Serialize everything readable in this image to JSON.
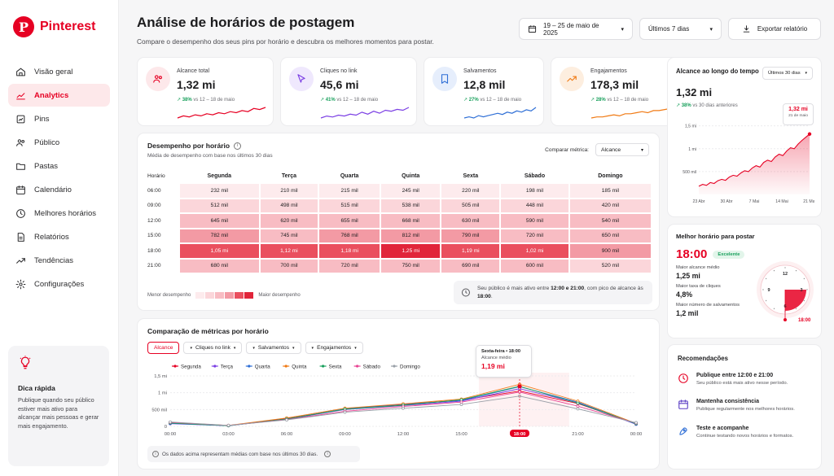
{
  "brand": {
    "name": "Pinterest",
    "logo_letter": "P",
    "accent": "#e60023"
  },
  "nav": [
    {
      "label": "Visão geral",
      "icon": "home-icon"
    },
    {
      "label": "Analytics",
      "icon": "analytics-icon",
      "active": true
    },
    {
      "label": "Pins",
      "icon": "pin-icon"
    },
    {
      "label": "Público",
      "icon": "audience-icon"
    },
    {
      "label": "Pastas",
      "icon": "folder-icon"
    },
    {
      "label": "Calendário",
      "icon": "calendar-icon"
    },
    {
      "label": "Melhores horários",
      "icon": "clock-icon"
    },
    {
      "label": "Relatórios",
      "icon": "report-icon"
    },
    {
      "label": "Tendências",
      "icon": "trend-icon"
    },
    {
      "label": "Configurações",
      "icon": "gear-icon"
    }
  ],
  "tip": {
    "title": "Dica rápida",
    "text": "Publique quando seu público estiver mais ativo para alcançar mais pessoas e gerar mais engajamento."
  },
  "header": {
    "title": "Análise de horários de postagem",
    "subtitle": "Compare o desempenho dos seus pins por horário e descubra os melhores momentos para postar.",
    "date_range": "19 – 25 de maio de 2025",
    "period": "Últimos 7 dias",
    "export_label": "Exportar relatório"
  },
  "kpis": [
    {
      "label": "Alcance total",
      "value": "1,32 mi",
      "change": "38%",
      "compare": "vs 12 – 18 de maio",
      "color": "#e60023",
      "bg": "#fde8ea",
      "icon": "users-icon"
    },
    {
      "label": "Cliques no link",
      "value": "45,6 mi",
      "change": "41%",
      "compare": "vs 12 – 18 de maio",
      "color": "#7b3fe4",
      "bg": "#efe8fd",
      "icon": "cursor-icon"
    },
    {
      "label": "Salvamentos",
      "value": "12,8 mil",
      "change": "27%",
      "compare": "vs 12 – 18 de maio",
      "color": "#2f6fd6",
      "bg": "#e6eefc",
      "icon": "bookmark-icon"
    },
    {
      "label": "Engajamentos",
      "value": "178,3 mil",
      "change": "28%",
      "compare": "vs 12 – 18 de maio",
      "color": "#f07a14",
      "bg": "#fdeedf",
      "icon": "trending-icon"
    }
  ],
  "heatmap": {
    "title": "Desempenho por horário",
    "subtitle": "Média de desempenho com base nos últimos 30 dias",
    "metric_label": "Comparar métrica:",
    "metric_value": "Alcance",
    "corner": "Horário",
    "days": [
      "Segunda",
      "Terça",
      "Quarta",
      "Quinta",
      "Sexta",
      "Sábado",
      "Domingo"
    ],
    "rows": [
      {
        "hour": "06:00",
        "cells": [
          "232 mil",
          "210 mil",
          "215 mil",
          "245 mil",
          "220 mil",
          "198 mil",
          "185 mil"
        ],
        "level": [
          1,
          1,
          1,
          1,
          1,
          1,
          1
        ]
      },
      {
        "hour": "09:00",
        "cells": [
          "512 mil",
          "498 mil",
          "515 mil",
          "538 mil",
          "505 mil",
          "448 mil",
          "420 mil"
        ],
        "level": [
          2,
          2,
          2,
          2,
          2,
          2,
          2
        ]
      },
      {
        "hour": "12:00",
        "cells": [
          "645 mil",
          "620 mil",
          "655 mil",
          "668 mil",
          "630 mil",
          "590 mil",
          "540 mil"
        ],
        "level": [
          3,
          3,
          3,
          3,
          3,
          3,
          3
        ]
      },
      {
        "hour": "15:00",
        "cells": [
          "782 mil",
          "745 mil",
          "768 mil",
          "812 mil",
          "790 mil",
          "720 mil",
          "650 mil"
        ],
        "level": [
          4,
          3,
          4,
          4,
          4,
          3,
          3
        ]
      },
      {
        "hour": "18:00",
        "cells": [
          "1,05 mi",
          "1,12 mi",
          "1,18 mi",
          "1,25 mi",
          "1,19 mi",
          "1,02 mi",
          "900 mil"
        ],
        "level": [
          5,
          5,
          5,
          6,
          5,
          5,
          4
        ]
      },
      {
        "hour": "21:00",
        "cells": [
          "680 mil",
          "700 mil",
          "720 mil",
          "750 mil",
          "690 mil",
          "600 mil",
          "520 mil"
        ],
        "level": [
          3,
          3,
          3,
          3,
          3,
          3,
          2
        ]
      }
    ],
    "legend_low": "Menor desempenho",
    "legend_high": "Maior desempenho",
    "insight_prefix": "Seu público é mais ativo entre ",
    "insight_hours": "12:00 e 21:00",
    "insight_mid": ", com pico de alcance às ",
    "insight_peak": "18:00",
    "insight_end": "."
  },
  "reach_chart": {
    "title": "Alcance ao longo do tempo",
    "period": "Últimos 30 dias",
    "value": "1,32 mi",
    "change": "38%",
    "compare": "vs 30 dias anteriores",
    "callout_value": "1,32 mi",
    "callout_date": "21 de maio"
  },
  "best_time": {
    "title": "Melhor horário para postar",
    "time": "18:00",
    "badge": "Excelente",
    "stats": [
      {
        "label": "Maior alcance médio",
        "value": "1,25 mi"
      },
      {
        "label": "Maior taxa de cliques",
        "value": "4,8%"
      },
      {
        "label": "Maior número de salvamentos",
        "value": "1,2 mil"
      }
    ],
    "clock_numbers": [
      "12",
      "3",
      "6",
      "9"
    ],
    "clock_label": "18:00"
  },
  "recommendations": {
    "title": "Recomendações",
    "items": [
      {
        "title": "Publique entre 12:00 e 21:00",
        "text": "Seu público está mais ativo nesse período.",
        "icon": "clock-icon",
        "color": "#e60023"
      },
      {
        "title": "Mantenha consistência",
        "text": "Publique regularmente nos melhores horários.",
        "icon": "calendar-icon",
        "color": "#5b3fc4"
      },
      {
        "title": "Teste e acompanhe",
        "text": "Continue testando novos horários e formatos.",
        "icon": "rocket-icon",
        "color": "#2f6fd6"
      }
    ]
  },
  "comparison": {
    "title": "Comparação de métricas por horário",
    "tabs": [
      "Alcance",
      "Cliques no link",
      "Salvamentos",
      "Engajamentos"
    ],
    "tooltip_day": "Sexta-feira • 18:00",
    "tooltip_label": "Alcance médio",
    "tooltip_value": "1,19 mi",
    "highlight_x": "18:00",
    "footnote": "Os dados acima representam médias com base nos últimos 30 dias."
  },
  "chart_data": [
    {
      "type": "line",
      "title": "Comparação de métricas por horário",
      "x": [
        "00:00",
        "03:00",
        "06:00",
        "09:00",
        "12:00",
        "15:00",
        "18:00",
        "21:00",
        "00:00"
      ],
      "y_ticks": [
        "0",
        "500 mil",
        "1 mi",
        "1,5 mi"
      ],
      "ylim": [
        0,
        1.5
      ],
      "legend_position": "top",
      "series": [
        {
          "name": "Segunda",
          "color": "#e60023",
          "values": [
            0.1,
            0.02,
            0.23,
            0.51,
            0.65,
            0.78,
            1.05,
            0.68,
            0.08
          ]
        },
        {
          "name": "Terça",
          "color": "#7b3fe4",
          "values": [
            0.08,
            0.02,
            0.21,
            0.5,
            0.62,
            0.75,
            1.12,
            0.7,
            0.06
          ]
        },
        {
          "name": "Quarta",
          "color": "#2f6fd6",
          "values": [
            0.09,
            0.02,
            0.22,
            0.52,
            0.66,
            0.77,
            1.18,
            0.72,
            0.07
          ]
        },
        {
          "name": "Quinta",
          "color": "#f07a14",
          "values": [
            0.11,
            0.03,
            0.25,
            0.54,
            0.67,
            0.81,
            1.25,
            0.75,
            0.09
          ]
        },
        {
          "name": "Sexta",
          "color": "#19a05c",
          "values": [
            0.1,
            0.02,
            0.22,
            0.51,
            0.63,
            0.79,
            1.19,
            0.69,
            0.08
          ]
        },
        {
          "name": "Sábado",
          "color": "#e84393",
          "values": [
            0.12,
            0.03,
            0.2,
            0.45,
            0.59,
            0.72,
            1.02,
            0.6,
            0.1
          ]
        },
        {
          "name": "Domingo",
          "color": "#9aa0a8",
          "values": [
            0.13,
            0.03,
            0.19,
            0.42,
            0.54,
            0.65,
            0.9,
            0.52,
            0.11
          ]
        }
      ]
    },
    {
      "type": "area",
      "title": "Alcance ao longo do tempo",
      "x_ticks": [
        "23 Abr",
        "30 Abr",
        "7 Mai",
        "14 Mai",
        "21 Mai"
      ],
      "y_ticks": [
        "500 mil",
        "1 mi",
        "1,5 mi"
      ],
      "ylim": [
        0,
        1.6
      ],
      "values": [
        0.18,
        0.22,
        0.2,
        0.26,
        0.24,
        0.3,
        0.33,
        0.31,
        0.38,
        0.42,
        0.4,
        0.47,
        0.52,
        0.5,
        0.58,
        0.63,
        0.6,
        0.7,
        0.75,
        0.72,
        0.82,
        0.88,
        0.85,
        0.95,
        1.02,
        1.0,
        1.1,
        1.18,
        1.25,
        1.32
      ]
    }
  ]
}
